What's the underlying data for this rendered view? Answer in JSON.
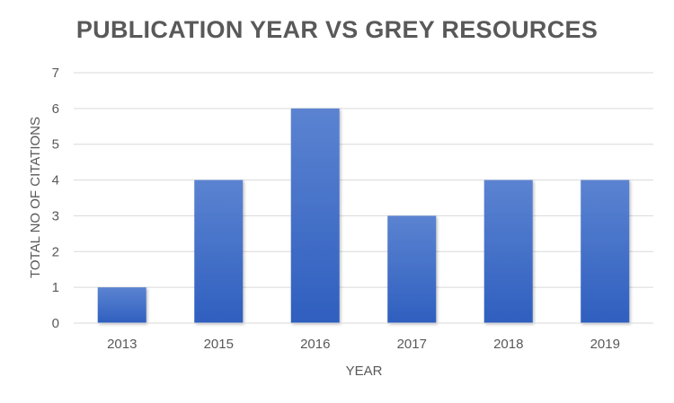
{
  "chart_data": {
    "type": "bar",
    "title": "PUBLICATION YEAR VS GREY RESOURCES",
    "xlabel": "YEAR",
    "ylabel": "TOTAL NO OF CITATIONS",
    "categories": [
      "2013",
      "2015",
      "2016",
      "2017",
      "2018",
      "2019"
    ],
    "values": [
      1,
      4,
      6,
      3,
      4,
      4
    ],
    "ylim": [
      0,
      7
    ],
    "yticks": [
      "0",
      "1",
      "2",
      "3",
      "4",
      "5",
      "6",
      "7"
    ],
    "grid": true,
    "legend": "none",
    "colors": {
      "bar_top": "#5b83d1",
      "bar_bottom": "#2f5fbf",
      "gridline": "#d9d9d9",
      "axis_text": "#595959",
      "title": "#595959"
    }
  }
}
